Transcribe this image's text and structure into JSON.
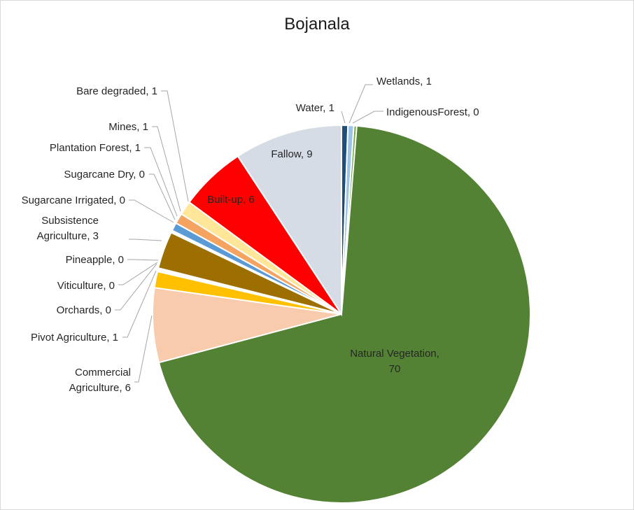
{
  "chart_data": {
    "type": "pie",
    "title": "Bojanala",
    "slices": [
      {
        "label": "Water",
        "value": 0.55,
        "display": "1",
        "color": "#1f4e79"
      },
      {
        "label": "Wetlands",
        "value": 0.5,
        "display": "1",
        "color": "#9dc3e6"
      },
      {
        "label": "IndigenousForest",
        "value": 0.25,
        "display": "0",
        "color": "#70ad47"
      },
      {
        "label": "Natural Vegetation",
        "value": 70,
        "display": "70",
        "color": "#548235"
      },
      {
        "label": "Commercial Agriculture",
        "value": 6.4,
        "display": "6",
        "color": "#f8cbad"
      },
      {
        "label": "Pivot  Agriculture",
        "value": 1.4,
        "display": "1",
        "color": "#ffc000"
      },
      {
        "label": "Orchards",
        "value": 0.1,
        "display": "0",
        "color": "#c55a11"
      },
      {
        "label": "Viticulture",
        "value": 0.1,
        "display": "0",
        "color": "#7030a0"
      },
      {
        "label": "Pineapple",
        "value": 0.1,
        "display": "0",
        "color": "#bf9000"
      },
      {
        "label": "Subsistence Agriculture",
        "value": 3.2,
        "display": "3",
        "color": "#9c6f00"
      },
      {
        "label": "Sugarcane Irrigated",
        "value": 0.1,
        "display": "0",
        "color": "#7f6000"
      },
      {
        "label": "Sugarcane Dry",
        "value": 0.1,
        "display": "0",
        "color": "#a5a5a5"
      },
      {
        "label": "Plantation Forest",
        "value": 0.7,
        "display": "1",
        "color": "#5b9bd5"
      },
      {
        "label": "Mines",
        "value": 0.9,
        "display": "1",
        "color": "#f4a460"
      },
      {
        "label": "Bare degraded",
        "value": 1.2,
        "display": "1",
        "color": "#ffe699"
      },
      {
        "label": "Built-up",
        "value": 5.7,
        "display": "6",
        "color": "#ff0000"
      },
      {
        "label": "Fallow",
        "value": 9.3,
        "display": "9",
        "color": "#d6dce5"
      }
    ],
    "label_lines": {
      "Water": "Water, 1",
      "Wetlands": "Wetlands, 1",
      "IndigenousForest": "IndigenousForest, 0",
      "Natural Vegetation": [
        "Natural Vegetation,",
        "70"
      ],
      "Commercial Agriculture": [
        "Commercial",
        "Agriculture, 6"
      ],
      "Pivot  Agriculture": "Pivot  Agriculture, 1",
      "Orchards": "Orchards, 0",
      "Viticulture": "Viticulture, 0",
      "Pineapple": "Pineapple, 0",
      "Subsistence Agriculture": [
        "Subsistence",
        "Agriculture, 3"
      ],
      "Sugarcane Irrigated": "Sugarcane Irrigated, 0",
      "Sugarcane Dry": "Sugarcane Dry, 0",
      "Plantation Forest": "Plantation Forest, 1",
      "Mines": "Mines, 1",
      "Bare degraded": "Bare degraded, 1",
      "Built-up": "Built-up, 6",
      "Fallow": "Fallow, 9"
    }
  }
}
